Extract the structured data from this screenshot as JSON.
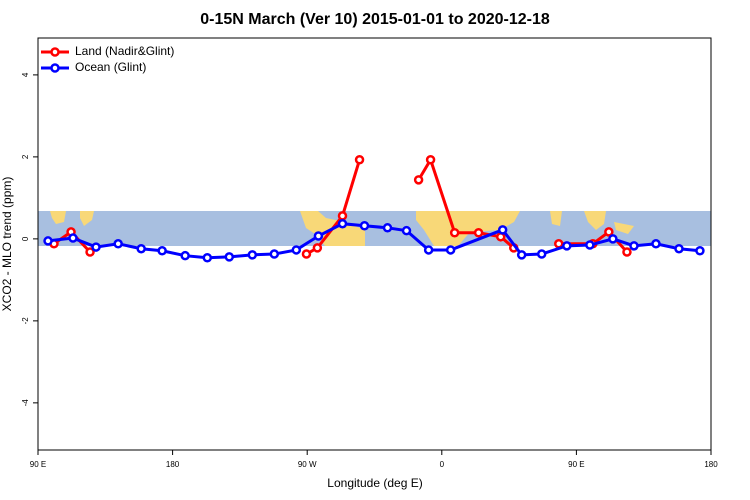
{
  "chart_data": {
    "type": "line",
    "title": "0-15N March (Ver 10)   2015-01-01 to 2020-12-18",
    "x_label": "Longitude (deg E)",
    "y_label": "XCO2 - MLO trend (ppm)",
    "xlim": [
      90,
      540
    ],
    "xticks": [
      {
        "value": 90,
        "label": "90 E"
      },
      {
        "value": 180,
        "label": "180"
      },
      {
        "value": 270,
        "label": "90 W"
      },
      {
        "value": 360,
        "label": "0"
      },
      {
        "value": 450,
        "label": "90 E"
      },
      {
        "value": 540,
        "label": "180"
      }
    ],
    "ylim": [
      -5.15,
      4.9
    ],
    "yticks": [
      -4,
      -2,
      0,
      2,
      4
    ],
    "legend": "top-left",
    "series": [
      {
        "name": "Land (Nadir&Glint)",
        "color": "#ff0000",
        "x": [
          100.7,
          112.1,
          124.8,
          null,
          269.5,
          276.8,
          293.6,
          305.0,
          null,
          344.5,
          352.5,
          368.6,
          384.6,
          399.4,
          408.1,
          null,
          438.2,
          461.0,
          471.7,
          483.8
        ],
        "values": [
          -0.12,
          0.17,
          -0.32,
          null,
          -0.37,
          -0.22,
          0.56,
          1.93,
          null,
          1.44,
          1.93,
          0.15,
          0.15,
          0.05,
          -0.22,
          null,
          -0.12,
          -0.12,
          0.17,
          -0.32
        ]
      },
      {
        "name": "Ocean (Glint)",
        "color": "#0000ff",
        "x": [
          96.7,
          113.4,
          128.8,
          143.6,
          159.0,
          173.0,
          188.4,
          203.2,
          217.9,
          233.3,
          248.0,
          262.7,
          277.5,
          293.6,
          308.3,
          323.7,
          336.4,
          351.2,
          365.9,
          400.7,
          413.4,
          426.8,
          443.6,
          459.0,
          474.4,
          488.5,
          503.2,
          518.6,
          532.6
        ],
        "values": [
          -0.05,
          0.02,
          -0.2,
          -0.12,
          -0.24,
          -0.29,
          -0.41,
          -0.46,
          -0.44,
          -0.39,
          -0.37,
          -0.27,
          0.07,
          0.37,
          0.32,
          0.27,
          0.2,
          -0.27,
          -0.27,
          0.22,
          -0.39,
          -0.37,
          -0.17,
          -0.15,
          0,
          -0.17,
          -0.12,
          -0.24,
          -0.29
        ]
      }
    ]
  }
}
